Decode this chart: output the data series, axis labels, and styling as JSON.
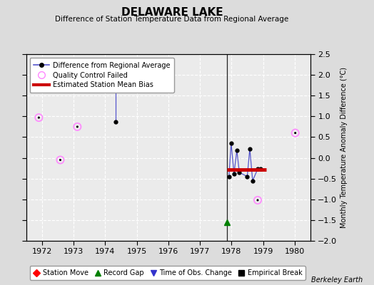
{
  "title": "DELAWARE LAKE",
  "subtitle": "Difference of Station Temperature Data from Regional Average",
  "ylabel": "Monthly Temperature Anomaly Difference (°C)",
  "credit": "Berkeley Earth",
  "xlim": [
    1971.5,
    1980.5
  ],
  "ylim": [
    -2.0,
    2.5
  ],
  "yticks": [
    -2,
    -1.5,
    -1,
    -0.5,
    0,
    0.5,
    1,
    1.5,
    2,
    2.5
  ],
  "xticks": [
    1972,
    1973,
    1974,
    1975,
    1976,
    1977,
    1978,
    1979,
    1980
  ],
  "bg_color": "#dcdcdc",
  "plot_bg_color": "#ebebeb",
  "grid_color": "#ffffff",
  "main_line_x": [
    1977.92,
    1977.99,
    1978.08,
    1978.17,
    1978.25,
    1978.5,
    1978.58,
    1978.67,
    1978.83,
    1978.92
  ],
  "main_line_y": [
    -0.45,
    0.35,
    -0.38,
    0.18,
    -0.35,
    -0.45,
    0.22,
    -0.55,
    -0.27,
    -0.27
  ],
  "qc_failed_x": [
    1971.9,
    1972.58,
    1973.12,
    1978.83,
    1980.02
  ],
  "qc_failed_y": [
    0.97,
    -0.05,
    0.75,
    -1.02,
    0.6
  ],
  "isolated_blue_top_y": 2.15,
  "isolated_blue_x": 1974.33,
  "isolated_blue_y": 0.87,
  "bias_x1": 1977.85,
  "bias_x2": 1979.1,
  "bias_y": -0.28,
  "event_vertical_x": 1977.85,
  "record_gap_x": 1977.85,
  "record_gap_y": -1.55,
  "main_line_color": "#5555cc",
  "main_marker_color": "#000000",
  "bias_color": "#cc0000",
  "qc_edge_color": "#ff88ff",
  "qc_face_color": "none",
  "isolated_color": "#5555cc",
  "vertical_line_color": "#222222",
  "grid_linestyle": "dotted"
}
